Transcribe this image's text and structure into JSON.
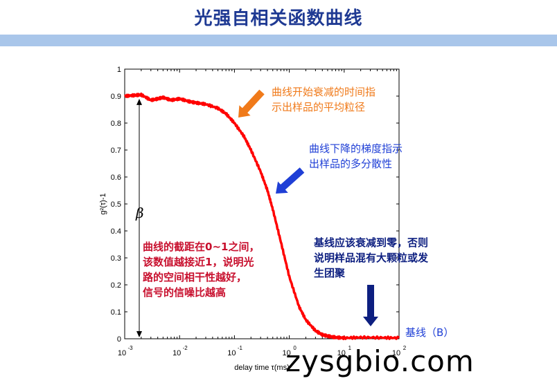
{
  "slide": {
    "title": "光强自相关函数曲线"
  },
  "watermark": "zysgbio.com",
  "colors": {
    "title": "#1f3a93",
    "title_bar": "#a9c6ea",
    "curve": "#ff0000",
    "arrow_orange": "#f07a1a",
    "arrow_blue": "#1f3fd6",
    "arrow_navy": "#0d1f80",
    "text_orange": "#f07a1a",
    "text_blue": "#1f3fd6",
    "text_navy": "#0d1f80",
    "text_red": "#c8102e"
  },
  "chart_data": {
    "type": "line",
    "xlabel": "delay time τ(ms)",
    "ylabel": "g²(τ)-1",
    "xscale": "log",
    "xlim": [
      0.001,
      100
    ],
    "ylim": [
      0,
      1
    ],
    "x_ticks": [
      {
        "value": 0.001,
        "base": "10",
        "exp": "-3"
      },
      {
        "value": 0.01,
        "base": "10",
        "exp": "-2"
      },
      {
        "value": 0.1,
        "base": "10",
        "exp": "-1"
      },
      {
        "value": 1,
        "base": "10",
        "exp": "0"
      },
      {
        "value": 10,
        "base": "10",
        "exp": "1"
      },
      {
        "value": 100,
        "base": "10",
        "exp": "2"
      }
    ],
    "y_ticks": [
      "0",
      "0.1",
      "0.2",
      "0.3",
      "0.4",
      "0.5",
      "0.6",
      "0.7",
      "0.8",
      "0.9",
      "1"
    ],
    "grid": false,
    "series": [
      {
        "x": [
          0.001,
          0.0015,
          0.002,
          0.003,
          0.004,
          0.005,
          0.007,
          0.01,
          0.015,
          0.02,
          0.03,
          0.05,
          0.07,
          0.1,
          0.15,
          0.2,
          0.3,
          0.4,
          0.5,
          0.7,
          1,
          1.5,
          2,
          3,
          4,
          5,
          7,
          10,
          20,
          50,
          100
        ],
        "y": [
          0.9,
          0.903,
          0.905,
          0.885,
          0.89,
          0.895,
          0.885,
          0.89,
          0.88,
          0.875,
          0.87,
          0.855,
          0.835,
          0.8,
          0.75,
          0.7,
          0.62,
          0.55,
          0.48,
          0.36,
          0.23,
          0.12,
          0.07,
          0.03,
          0.015,
          0.01,
          0.005,
          0.003,
          0.005,
          0.004,
          0.003
        ]
      }
    ],
    "beta_label": "β",
    "annotations": [
      {
        "id": "mean-size",
        "lines": [
          "曲线开始衰减的时间指",
          "示出样品的平均粒径"
        ],
        "color_key": "text_orange"
      },
      {
        "id": "polydispersity",
        "lines": [
          "曲线下降的梯度指示",
          "出样品的多分散性"
        ],
        "color_key": "text_blue"
      },
      {
        "id": "baseline-note",
        "lines": [
          "基线应该衰减到零，否则",
          "说明样品混有大颗粒或发",
          "生团聚"
        ],
        "color_key": "text_navy"
      },
      {
        "id": "intercept",
        "lines": [
          "曲线的截距在0~1之间，",
          "该数值越接近1，说明光",
          "路的空间相干性越好，",
          "信号的信噪比越高"
        ],
        "color_key": "text_red"
      },
      {
        "id": "baseline-label",
        "lines": [
          "基线（B）"
        ],
        "color_key": "text_blue"
      }
    ]
  }
}
